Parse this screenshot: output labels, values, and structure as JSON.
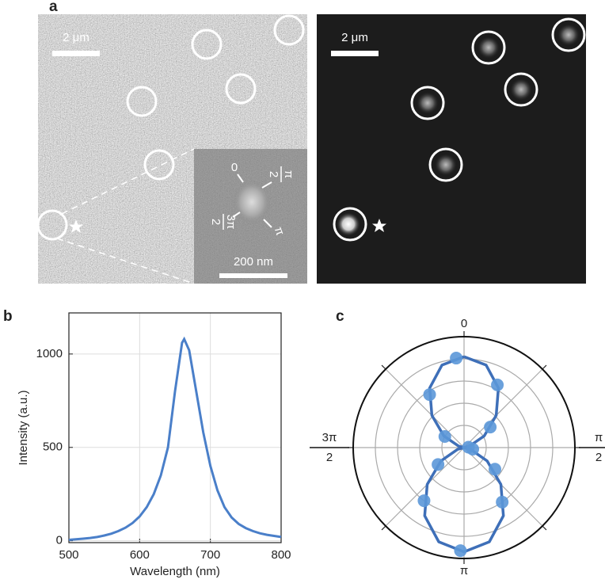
{
  "panel_labels": [
    "a",
    "b",
    "c"
  ],
  "panel_a": {
    "left_scale_bar": "2 μm",
    "right_scale_bar": "2 μm",
    "inset_scale_bar": "200 nm",
    "inset_angles": [
      {
        "label": "0"
      },
      {
        "num": "π",
        "den": "2"
      },
      {
        "num": "3π",
        "den": "2"
      },
      {
        "label": "π"
      }
    ]
  },
  "chart_data": [
    {
      "type": "line",
      "x_label": "Wavelength (nm)",
      "y_label": "Intensity (a.u.)",
      "x": [
        500,
        510,
        520,
        530,
        540,
        550,
        560,
        570,
        580,
        590,
        600,
        610,
        620,
        630,
        640,
        650,
        660,
        663,
        670,
        680,
        690,
        700,
        710,
        720,
        730,
        740,
        750,
        760,
        770,
        780,
        790,
        800
      ],
      "values": [
        5,
        8,
        11,
        15,
        20,
        28,
        38,
        52,
        70,
        95,
        130,
        180,
        250,
        350,
        500,
        800,
        1060,
        1080,
        1020,
        800,
        580,
        400,
        270,
        180,
        125,
        90,
        68,
        52,
        40,
        32,
        26,
        20
      ],
      "color": "#4a7fc9",
      "xlim": [
        500,
        800
      ],
      "ylim": [
        -10,
        1220
      ],
      "xticks": [
        500,
        600,
        700,
        800
      ],
      "yticks": [
        0,
        500,
        1000
      ],
      "grid": true
    },
    {
      "type": "polar",
      "rlim": [
        0,
        1
      ],
      "rticks": [
        0.2,
        0.4,
        0.6,
        0.8
      ],
      "theta_grid": [
        0,
        45,
        90,
        135,
        180,
        225,
        270,
        315
      ],
      "thetaticks": [
        0,
        {
          "value": 90,
          "num": "π",
          "den": "2"
        },
        {
          "value": 180,
          "label": "π"
        },
        {
          "value": 270,
          "num": "3π",
          "den": "2"
        }
      ],
      "series": [
        {
          "color": "#3e6fb8",
          "theta": [
            0,
            15,
            30,
            45,
            60,
            75,
            90,
            105,
            120,
            135,
            150,
            165,
            180,
            195,
            210,
            225,
            240,
            255,
            270,
            285,
            300,
            315,
            330,
            345,
            360
          ],
          "values": [
            0.82,
            0.77,
            0.62,
            0.41,
            0.21,
            0.05,
            0,
            0.06,
            0.24,
            0.47,
            0.71,
            0.88,
            0.94,
            0.88,
            0.71,
            0.47,
            0.24,
            0.06,
            0,
            0.05,
            0.21,
            0.41,
            0.62,
            0.77,
            0.82
          ]
        },
        {
          "color": "#5b97d8",
          "theta": [
            -5,
            28,
            -33,
            52,
            -60,
            85,
            182,
            145,
            217,
            125,
            237,
            100
          ],
          "values": [
            0.81,
            0.64,
            0.57,
            0.3,
            0.2,
            0.04,
            0.93,
            0.6,
            0.6,
            0.34,
            0.28,
            0.08
          ]
        }
      ]
    }
  ]
}
